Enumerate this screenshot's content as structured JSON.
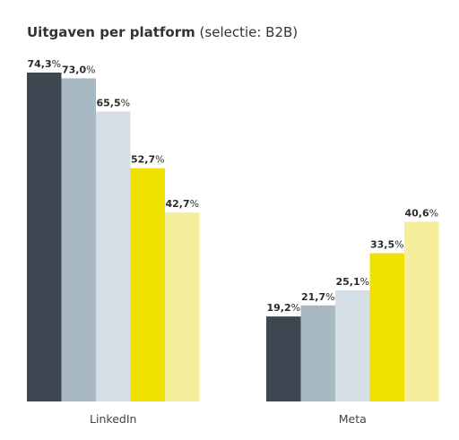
{
  "chart_data": {
    "type": "bar",
    "title": "Uitgaven per platform",
    "subtitle": "(selectie: B2B)",
    "xlabel": "",
    "ylabel": "",
    "ylim": [
      0,
      75
    ],
    "grid": false,
    "categories": [
      "LinkedIn",
      "Meta"
    ],
    "series": [
      {
        "color": "#3d4751",
        "values": [
          74.3,
          19.2
        ]
      },
      {
        "color": "#a9b9c3",
        "values": [
          73.0,
          21.7
        ]
      },
      {
        "color": "#d6dfe6",
        "values": [
          65.5,
          25.1
        ]
      },
      {
        "color": "#f0e100",
        "values": [
          52.7,
          33.5
        ]
      },
      {
        "color": "#f5ee9b",
        "values": [
          42.7,
          40.6
        ]
      }
    ],
    "value_suffix": "%",
    "decimal_separator": ","
  }
}
